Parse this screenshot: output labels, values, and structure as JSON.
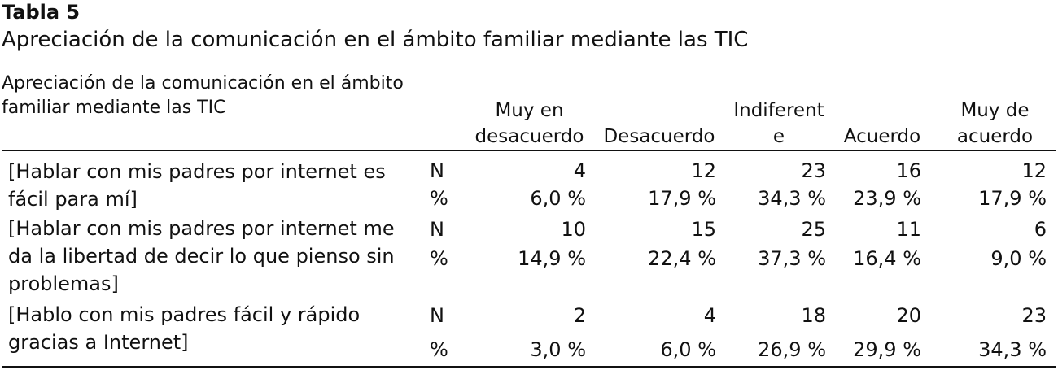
{
  "table_label": "Tabla 5",
  "table_title": "Apreciación de la comunicación en el ámbito familiar mediante las TIC",
  "stub_header": "Apreciación de la comunicación en el ámbito familiar mediante las TIC",
  "columns": {
    "c1_line1": "Muy en",
    "c1_line2": "desacuerdo",
    "c2_line2": "Desacuerdo",
    "c3_line1": "Indiferent",
    "c3_line2": "e",
    "c4_line2": "Acuerdo",
    "c5_line1": "Muy de",
    "c5_line2": "acuerdo"
  },
  "rows": [
    {
      "label": "[Hablar con mis padres por internet es fácil para mí]",
      "n_label": "N",
      "pct_label": "%",
      "n": [
        "4",
        "12",
        "23",
        "16",
        "12"
      ],
      "pct": [
        "6,0 %",
        "17,9 %",
        "34,3 %",
        "23,9 %",
        "17,9 %"
      ]
    },
    {
      "label": "[Hablar con mis padres por internet me da la libertad de decir lo que pienso sin problemas]",
      "n_label": "N",
      "pct_label": "%",
      "n": [
        "10",
        "15",
        "25",
        "11",
        "6"
      ],
      "pct": [
        "14,9 %",
        "22,4 %",
        "37,3 %",
        "16,4 %",
        "9,0 %"
      ]
    },
    {
      "label": "[Hablo con mis padres fácil y rápido gracias a Internet]",
      "n_label": "N",
      "pct_label": "%",
      "n": [
        "2",
        "4",
        "18",
        "20",
        "23"
      ],
      "pct": [
        "3,0 %",
        "6,0 %",
        "26,9 %",
        "29,9 %",
        "34,3 %"
      ]
    }
  ]
}
